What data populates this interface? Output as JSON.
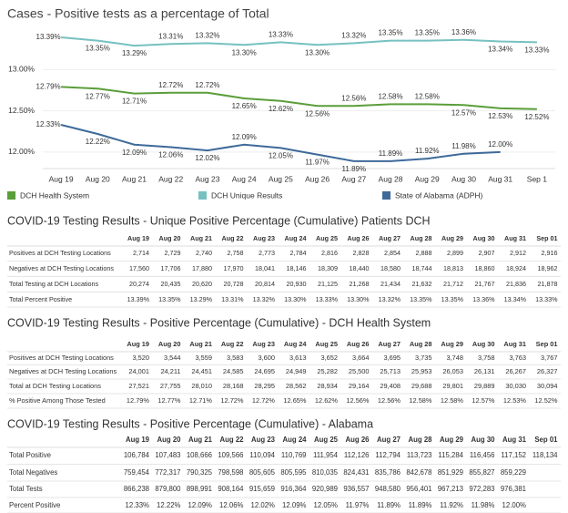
{
  "chart_data": {
    "type": "line",
    "title": "Cases - Positive tests as a percentage of Total",
    "categories": [
      "Aug 19",
      "Aug 20",
      "Aug 21",
      "Aug 22",
      "Aug 23",
      "Aug 24",
      "Aug 25",
      "Aug 26",
      "Aug 27",
      "Aug 28",
      "Aug 29",
      "Aug 30",
      "Aug 31",
      "Sep 1"
    ],
    "ylim": [
      11.8,
      13.6
    ],
    "yticks": [
      {
        "value": 12,
        "label": "12.00%"
      },
      {
        "value": 12.5,
        "label": "12.50%"
      },
      {
        "value": 13,
        "label": "13.00%"
      }
    ],
    "grid": true,
    "series": [
      {
        "name": "DCH Health System",
        "color": "#5a9e3a",
        "values": [
          12.79,
          12.77,
          12.71,
          12.72,
          12.72,
          12.65,
          12.62,
          12.56,
          12.56,
          12.58,
          12.58,
          12.57,
          12.53,
          12.52
        ],
        "value_labels": [
          "12.79%",
          "12.77%",
          "12.71%",
          "12.72%",
          "12.72%",
          "12.65%",
          "12.62%",
          "12.56%",
          "12.56%",
          "12.58%",
          "12.58%",
          "12.57%",
          "12.53%",
          "12.52%"
        ]
      },
      {
        "name": "DCH Unique Results",
        "color": "#76c1c0",
        "values": [
          13.39,
          13.35,
          13.29,
          13.31,
          13.32,
          13.3,
          13.33,
          13.3,
          13.32,
          13.35,
          13.35,
          13.36,
          13.34,
          13.33
        ],
        "value_labels": [
          "13.39%",
          "13.35%",
          "13.29%",
          "13.31%",
          "13.32%",
          "13.30%",
          "13.33%",
          "13.30%",
          "13.32%",
          "13.35%",
          "13.35%",
          "13.36%",
          "13.34%",
          "13.33%"
        ]
      },
      {
        "name": "State of Alabama (ADPH)",
        "color": "#3e6a99",
        "values": [
          12.33,
          12.22,
          12.09,
          12.06,
          12.02,
          12.09,
          12.05,
          11.97,
          11.89,
          11.89,
          11.92,
          11.98,
          12.0,
          null
        ],
        "value_labels": [
          "12.33%",
          "12.22%",
          "12.09%",
          "12.06%",
          "12.02%",
          "12.09%",
          "12.05%",
          "11.97%",
          "11.89%",
          "11.89%",
          "11.92%",
          "11.98%",
          "12.00%",
          null
        ]
      }
    ]
  },
  "tables": [
    {
      "title": "COVID-19 Testing Results - Unique Positive Percentage (Cumulative) Patients DCH",
      "columns": [
        "Aug 19",
        "Aug 20",
        "Aug 21",
        "Aug 22",
        "Aug 23",
        "Aug 24",
        "Aug 25",
        "Aug 26",
        "Aug 27",
        "Aug 28",
        "Aug 29",
        "Aug 30",
        "Aug 31",
        "Sep 01"
      ],
      "rows": [
        {
          "label": "Positives at DCH Testing Locations",
          "cells": [
            "2,714",
            "2,729",
            "2,740",
            "2,758",
            "2,773",
            "2,784",
            "2,816",
            "2,828",
            "2,854",
            "2,888",
            "2,899",
            "2,907",
            "2,912",
            "2,916"
          ]
        },
        {
          "label": "Negatives at DCH Testing Locations",
          "cells": [
            "17,560",
            "17,706",
            "17,880",
            "17,970",
            "18,041",
            "18,146",
            "18,309",
            "18,440",
            "18,580",
            "18,744",
            "18,813",
            "18,860",
            "18,924",
            "18,962"
          ]
        },
        {
          "label": "Total Testing at DCH Locations",
          "cells": [
            "20,274",
            "20,435",
            "20,620",
            "20,728",
            "20,814",
            "20,930",
            "21,125",
            "21,268",
            "21,434",
            "21,632",
            "21,712",
            "21,767",
            "21,836",
            "21,878"
          ]
        },
        {
          "label": "Total Percent Positive",
          "cells": [
            "13.39%",
            "13.35%",
            "13.29%",
            "13.31%",
            "13.32%",
            "13.30%",
            "13.33%",
            "13.30%",
            "13.32%",
            "13.35%",
            "13.35%",
            "13.36%",
            "13.34%",
            "13.33%"
          ]
        }
      ]
    },
    {
      "title": "COVID-19 Testing Results - Positive Percentage (Cumulative) - DCH Health System",
      "columns": [
        "Aug 19",
        "Aug 20",
        "Aug 21",
        "Aug 22",
        "Aug 23",
        "Aug 24",
        "Aug 25",
        "Aug 26",
        "Aug 27",
        "Aug 28",
        "Aug 29",
        "Aug 30",
        "Aug 31",
        "Sep 01"
      ],
      "rows": [
        {
          "label": "Positives at DCH Testing Locations",
          "cells": [
            "3,520",
            "3,544",
            "3,559",
            "3,583",
            "3,600",
            "3,613",
            "3,652",
            "3,664",
            "3,695",
            "3,735",
            "3,748",
            "3,758",
            "3,763",
            "3,767"
          ]
        },
        {
          "label": "Negatives at DCH Testing Locations",
          "cells": [
            "24,001",
            "24,211",
            "24,451",
            "24,585",
            "24,695",
            "24,949",
            "25,282",
            "25,500",
            "25,713",
            "25,953",
            "26,053",
            "26,131",
            "26,267",
            "26,327"
          ]
        },
        {
          "label": "Total at DCH Testing Locations",
          "cells": [
            "27,521",
            "27,755",
            "28,010",
            "28,168",
            "28,295",
            "28,562",
            "28,934",
            "29,164",
            "29,408",
            "29,688",
            "29,801",
            "29,889",
            "30,030",
            "30,094"
          ]
        },
        {
          "label": "% Positive Among Those Tested",
          "cells": [
            "12.79%",
            "12.77%",
            "12.71%",
            "12.72%",
            "12.72%",
            "12.65%",
            "12.62%",
            "12.56%",
            "12.56%",
            "12.58%",
            "12.58%",
            "12.57%",
            "12.53%",
            "12.52%"
          ]
        }
      ]
    },
    {
      "title": "COVID-19 Testing Results - Positive Percentage (Cumulative) - Alabama",
      "columns": [
        "Aug 19",
        "Aug 20",
        "Aug 21",
        "Aug 22",
        "Aug 23",
        "Aug 24",
        "Aug 25",
        "Aug 26",
        "Aug 27",
        "Aug 28",
        "Aug 29",
        "Aug 30",
        "Aug 31",
        "Sep 01"
      ],
      "rows": [
        {
          "label": "Total Positive",
          "cells": [
            "106,784",
            "107,483",
            "108,666",
            "109,566",
            "110,094",
            "110,769",
            "111,954",
            "112,126",
            "112,794",
            "113,723",
            "115,284",
            "116,456",
            "117,152",
            "118,134"
          ]
        },
        {
          "label": "Total Negatives",
          "cells": [
            "759,454",
            "772,317",
            "790,325",
            "798,598",
            "805,605",
            "805,595",
            "810,035",
            "824,431",
            "835,786",
            "842,678",
            "851,929",
            "855,827",
            "859,229",
            null
          ]
        },
        {
          "label": "Total Tests",
          "cells": [
            "866,238",
            "879,800",
            "898,991",
            "908,164",
            "915,659",
            "916,364",
            "920,989",
            "936,557",
            "948,580",
            "956,401",
            "967,213",
            "972,283",
            "976,381",
            null
          ]
        },
        {
          "label": "Percent Positive",
          "cells": [
            "12.33%",
            "12.22%",
            "12.09%",
            "12.06%",
            "12.02%",
            "12.09%",
            "12.05%",
            "11.97%",
            "11.89%",
            "11.89%",
            "11.92%",
            "11.98%",
            "12.00%",
            null
          ]
        }
      ]
    }
  ]
}
